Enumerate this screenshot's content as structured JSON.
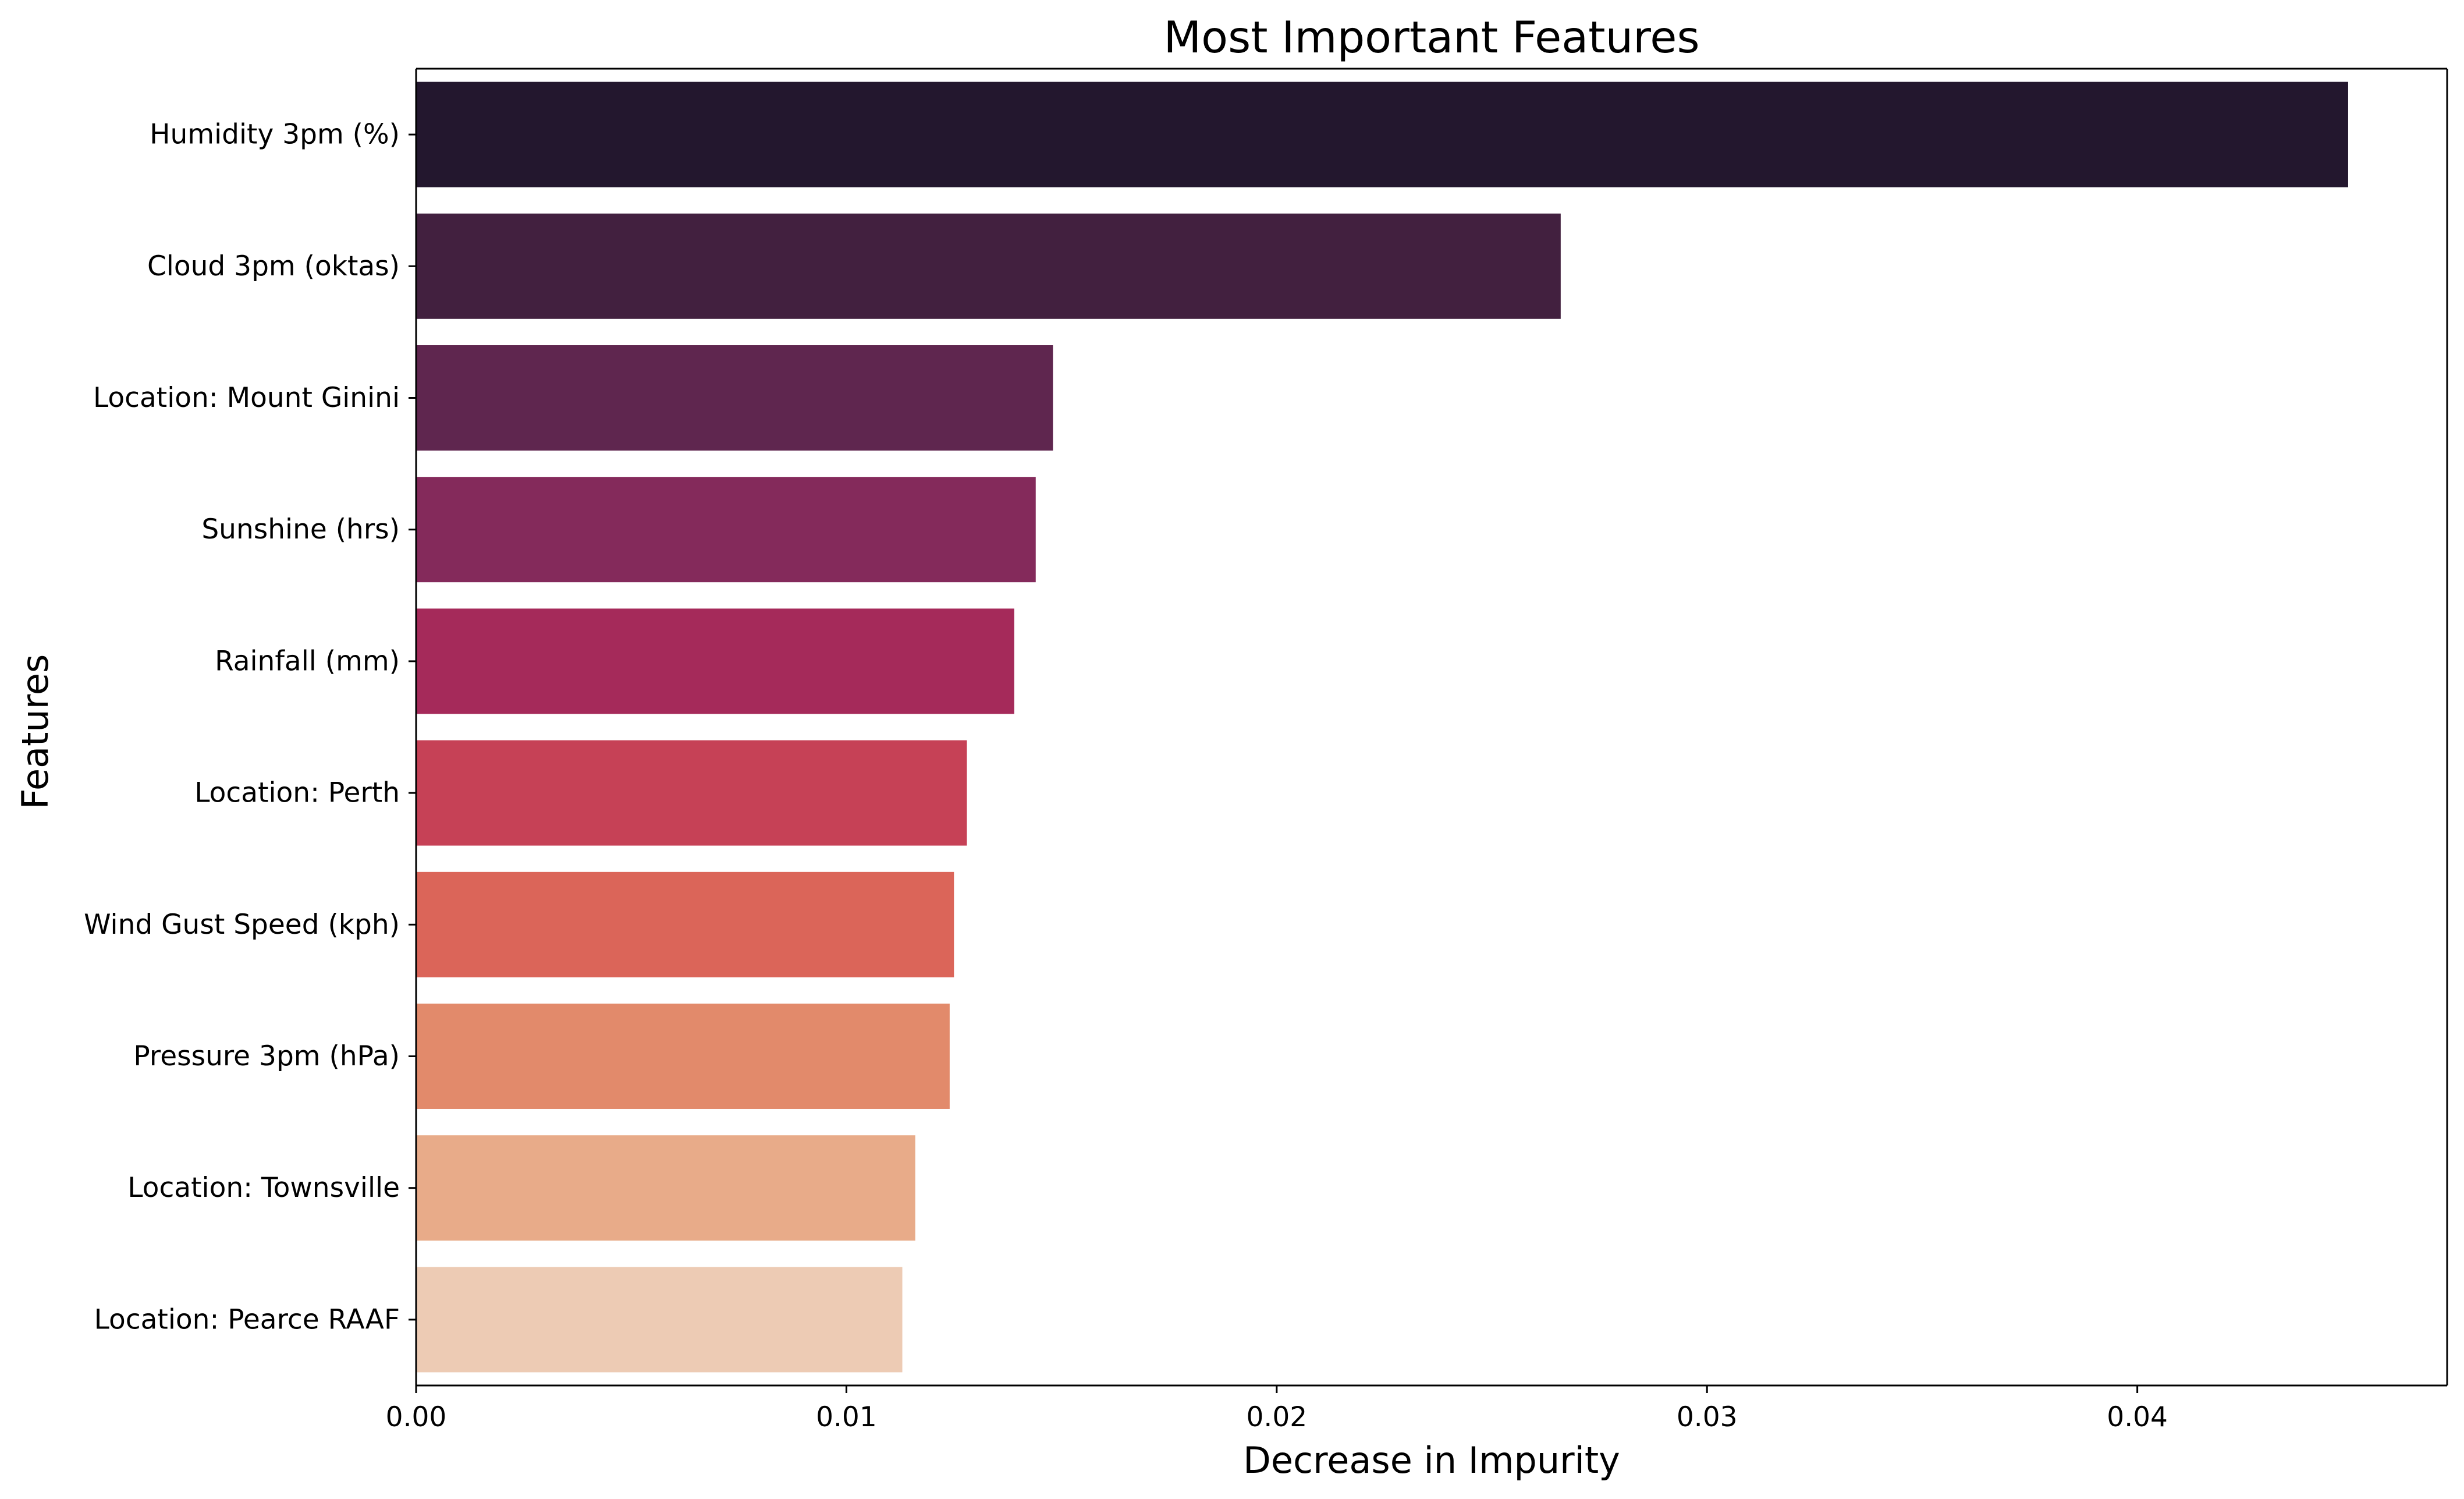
{
  "chart_data": {
    "type": "bar",
    "orientation": "horizontal",
    "title": "Most Important Features",
    "xlabel": "Decrease in Impurity",
    "ylabel": "Features",
    "categories": [
      "Humidity 3pm (%)",
      "Cloud 3pm (oktas)",
      "Location: Mount Ginini",
      "Sunshine (hrs)",
      "Rainfall (mm)",
      "Location: Perth",
      "Wind Gust Speed (kph)",
      "Pressure 3pm (hPa)",
      "Location: Townsville",
      "Location: Pearce RAAF"
    ],
    "values": [
      0.0449,
      0.0266,
      0.0148,
      0.0144,
      0.0139,
      0.0128,
      0.0125,
      0.0124,
      0.0116,
      0.0113
    ],
    "colors": [
      "#23172e",
      "#42203f",
      "#5f264f",
      "#842a5b",
      "#a52a5a",
      "#c64156",
      "#db6559",
      "#e28a6b",
      "#e8ab89",
      "#edcbb4"
    ],
    "xlim": [
      0,
      0.0472
    ],
    "xticks": [
      0.0,
      0.01,
      0.02,
      0.03,
      0.04
    ],
    "xtick_labels": [
      "0.00",
      "0.01",
      "0.02",
      "0.03",
      "0.04"
    ],
    "grid": false,
    "legend": "none"
  }
}
